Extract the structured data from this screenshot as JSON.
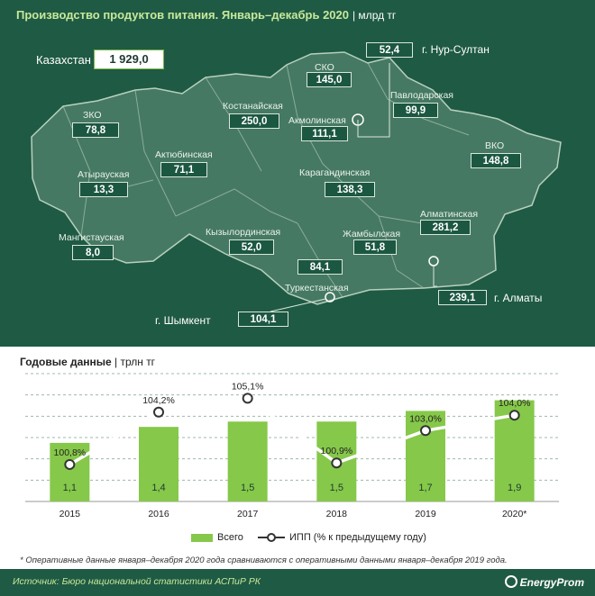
{
  "header": {
    "title": "Производство продуктов питания. Январь–декабрь 2020",
    "unit": "| млрд тг"
  },
  "kazakhstan": {
    "label": "Казахстан",
    "value": "1 929,0"
  },
  "regions": [
    {
      "id": "zko",
      "name": "ЗКО",
      "value": "78,8"
    },
    {
      "id": "atyrau",
      "name": "Атырауская",
      "value": "13,3"
    },
    {
      "id": "mangystau",
      "name": "Мангистауская",
      "value": "8,0"
    },
    {
      "id": "aktobe",
      "name": "Актюбинская",
      "value": "71,1"
    },
    {
      "id": "kostanay",
      "name": "Костанайская",
      "value": "250,0"
    },
    {
      "id": "sko",
      "name": "СКО",
      "value": "145,0"
    },
    {
      "id": "akmola",
      "name": "Акмолинская",
      "value": "111,1"
    },
    {
      "id": "pavlodar",
      "name": "Павлодарская",
      "value": "99,9"
    },
    {
      "id": "vko",
      "name": "ВКО",
      "value": "148,8"
    },
    {
      "id": "karaganda",
      "name": "Карагандинская",
      "value": "138,3"
    },
    {
      "id": "kyzylorda",
      "name": "Кызылординская",
      "value": "52,0"
    },
    {
      "id": "zhambyl",
      "name": "Жамбылская",
      "value": "51,8"
    },
    {
      "id": "almaty_reg",
      "name": "Алматинская",
      "value": "281,2"
    },
    {
      "id": "turkestan",
      "name": "Туркестанская",
      "value": "84,1"
    }
  ],
  "cities": [
    {
      "id": "nursultan",
      "name": "г. Нур-Султан",
      "value": "52,4"
    },
    {
      "id": "almaty",
      "name": "г. Алматы",
      "value": "239,1"
    },
    {
      "id": "shymkent",
      "name": "г. Шымкент",
      "value": "104,1"
    }
  ],
  "annual": {
    "title": "Годовые данные",
    "unit": "| трлн тг"
  },
  "chart_data": {
    "type": "bar",
    "categories": [
      "2015",
      "2016",
      "2017",
      "2018",
      "2019",
      "2020*"
    ],
    "series": [
      {
        "name": "Всего",
        "type": "bar",
        "values": [
          1.1,
          1.4,
          1.5,
          1.5,
          1.7,
          1.9
        ],
        "labels": [
          "1,1",
          "1,4",
          "1,5",
          "1,5",
          "1,7",
          "1,9"
        ],
        "color": "#86c84a"
      },
      {
        "name": "ИПП (% к предыдущему году)",
        "type": "line",
        "values": [
          100.8,
          104.2,
          105.1,
          100.9,
          103.0,
          104.0
        ],
        "labels": [
          "100,8%",
          "104,2%",
          "105,1%",
          "100,9%",
          "103,0%",
          "104,0%"
        ],
        "color": "#ffffff"
      }
    ],
    "bar_ylim": [
      0,
      2.4
    ],
    "line_ylim": [
      98.4,
      106.7
    ],
    "grid": true,
    "legend": "bottom"
  },
  "footnote": "* Оперативные данные января–декабря 2020 года сравниваются с оперативными данными января–декабря 2019 года.",
  "source": "Источник: Бюро национальной статистики АСПиР РК",
  "brand": "EnergyProm",
  "colors": {
    "panel": "#1f5a44",
    "accent": "#c7e89a",
    "bar": "#86c84a"
  }
}
